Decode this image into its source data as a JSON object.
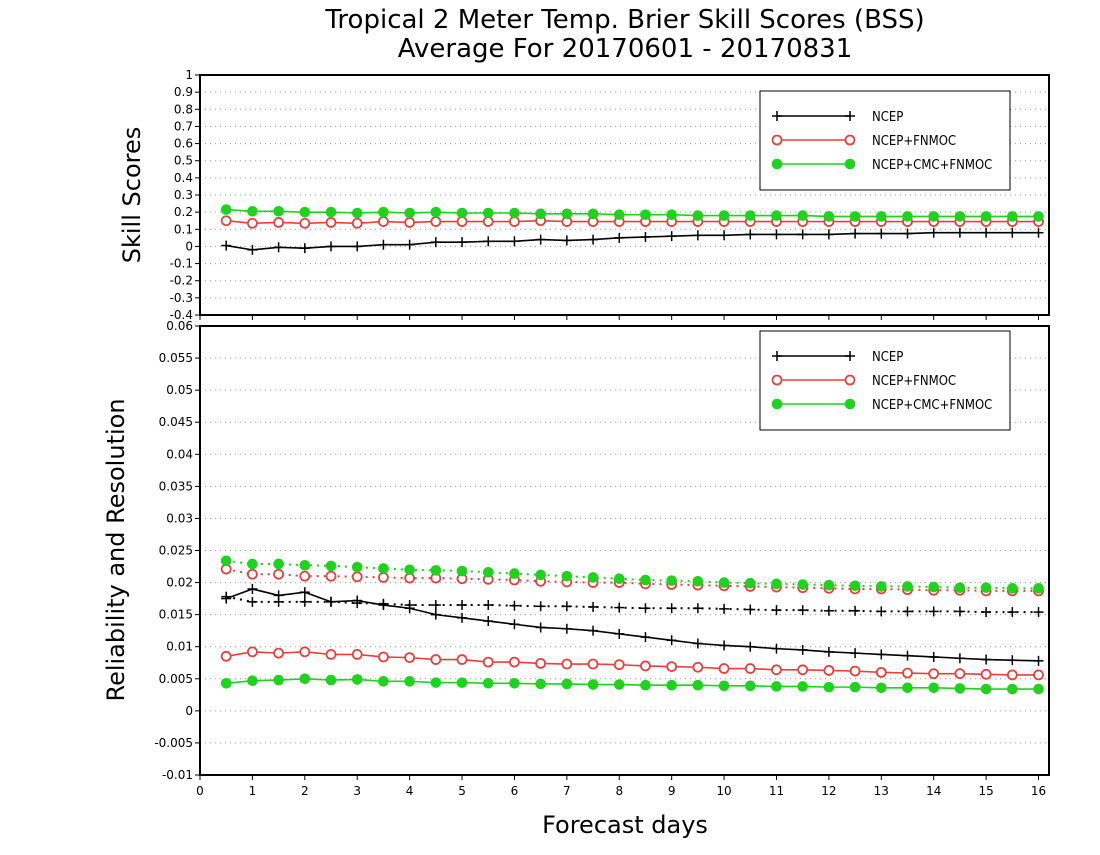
{
  "colors": {
    "ncep": "#000000",
    "fnmoc": "#e8403c",
    "cmc": "#1ed21e"
  },
  "chart_data": [
    {
      "type": "line",
      "title": [
        "Tropical 2 Meter Temp. Brier Skill Scores (BSS)",
        "Average For 20170601 - 20170831"
      ],
      "ylabel": "Skill Scores",
      "xlim": [
        0,
        16.2
      ],
      "ylim": [
        -0.4,
        1
      ],
      "yticks": [
        "-0.4",
        "-0.3",
        "-0.2",
        "-0.1",
        "0",
        "0.1",
        "0.2",
        "0.3",
        "0.4",
        "0.5",
        "0.6",
        "0.7",
        "0.8",
        "0.9",
        "1"
      ],
      "grid": true,
      "legend_position": "top-right",
      "legend": [
        "NCEP",
        "NCEP+FNMOC",
        "NCEP+CMC+FNMOC"
      ],
      "x": [
        0.5,
        1,
        1.5,
        2,
        2.5,
        3,
        3.5,
        4,
        4.5,
        5,
        5.5,
        6,
        6.5,
        7,
        7.5,
        8,
        8.5,
        9,
        9.5,
        10,
        10.5,
        11,
        11.5,
        12,
        12.5,
        13,
        13.5,
        14,
        14.5,
        15,
        15.5,
        16
      ],
      "series": [
        {
          "name": "NCEP",
          "style": "plus-solid",
          "color": "#000000",
          "values": [
            0.005,
            -0.02,
            -0.005,
            -0.01,
            0.0,
            0.0,
            0.01,
            0.01,
            0.025,
            0.025,
            0.03,
            0.03,
            0.04,
            0.035,
            0.04,
            0.05,
            0.055,
            0.06,
            0.065,
            0.065,
            0.07,
            0.07,
            0.07,
            0.07,
            0.075,
            0.075,
            0.075,
            0.08,
            0.08,
            0.08,
            0.08,
            0.08
          ]
        },
        {
          "name": "NCEP+FNMOC",
          "style": "circle-solid",
          "color": "#e8403c",
          "values": [
            0.15,
            0.135,
            0.14,
            0.135,
            0.14,
            0.135,
            0.145,
            0.14,
            0.145,
            0.145,
            0.145,
            0.145,
            0.15,
            0.145,
            0.145,
            0.145,
            0.145,
            0.145,
            0.145,
            0.145,
            0.145,
            0.145,
            0.145,
            0.145,
            0.145,
            0.145,
            0.145,
            0.145,
            0.145,
            0.145,
            0.145,
            0.145
          ]
        },
        {
          "name": "NCEP+CMC+FNMOC",
          "style": "dot-solid",
          "color": "#1ed21e",
          "values": [
            0.215,
            0.205,
            0.205,
            0.2,
            0.2,
            0.195,
            0.2,
            0.195,
            0.2,
            0.195,
            0.195,
            0.195,
            0.19,
            0.19,
            0.19,
            0.185,
            0.185,
            0.185,
            0.18,
            0.18,
            0.18,
            0.18,
            0.18,
            0.175,
            0.175,
            0.175,
            0.175,
            0.175,
            0.175,
            0.175,
            0.175,
            0.175
          ]
        }
      ]
    },
    {
      "type": "line",
      "ylabel": "Reliability and Resolution",
      "xlabel": "Forecast days",
      "xlim": [
        0,
        16.2
      ],
      "ylim": [
        -0.01,
        0.06
      ],
      "xticks": [
        "0",
        "1",
        "2",
        "3",
        "4",
        "5",
        "6",
        "7",
        "8",
        "9",
        "10",
        "11",
        "12",
        "13",
        "14",
        "15",
        "16"
      ],
      "yticks": [
        "-0.01",
        "-0.005",
        "0",
        "0.005",
        "0.01",
        "0.015",
        "0.02",
        "0.025",
        "0.03",
        "0.035",
        "0.04",
        "0.045",
        "0.05",
        "0.055",
        "0.06"
      ],
      "grid": true,
      "legend_position": "top-right",
      "legend": [
        "NCEP",
        "NCEP+FNMOC",
        "NCEP+CMC+FNMOC"
      ],
      "x": [
        0.5,
        1,
        1.5,
        2,
        2.5,
        3,
        3.5,
        4,
        4.5,
        5,
        5.5,
        6,
        6.5,
        7,
        7.5,
        8,
        8.5,
        9,
        9.5,
        10,
        10.5,
        11,
        11.5,
        12,
        12.5,
        13,
        13.5,
        14,
        14.5,
        15,
        15.5,
        16
      ],
      "series": [
        {
          "name": "NCEP",
          "style": "plus-solid",
          "color": "#000000",
          "values": [
            0.0175,
            0.019,
            0.018,
            0.0185,
            0.017,
            0.0172,
            0.0165,
            0.016,
            0.015,
            0.0145,
            0.014,
            0.0135,
            0.013,
            0.0128,
            0.0125,
            0.012,
            0.0115,
            0.011,
            0.0105,
            0.0102,
            0.01,
            0.0097,
            0.0095,
            0.0092,
            0.009,
            0.0088,
            0.0086,
            0.0084,
            0.0082,
            0.008,
            0.0079,
            0.0078
          ]
        },
        {
          "name": "NCEP",
          "style": "plus-dotted",
          "color": "#000000",
          "values": [
            0.0178,
            0.017,
            0.017,
            0.017,
            0.017,
            0.0168,
            0.0167,
            0.0165,
            0.0165,
            0.0165,
            0.0165,
            0.0164,
            0.0163,
            0.0163,
            0.0162,
            0.0161,
            0.016,
            0.016,
            0.016,
            0.0159,
            0.0158,
            0.0157,
            0.0157,
            0.0156,
            0.0156,
            0.0155,
            0.0155,
            0.0155,
            0.0155,
            0.0154,
            0.0154,
            0.0154
          ]
        },
        {
          "name": "NCEP+FNMOC",
          "style": "circle-solid",
          "color": "#e8403c",
          "values": [
            0.0085,
            0.0092,
            0.009,
            0.0092,
            0.0088,
            0.0088,
            0.0084,
            0.0083,
            0.008,
            0.008,
            0.0076,
            0.0076,
            0.0074,
            0.0073,
            0.0073,
            0.0072,
            0.007,
            0.0069,
            0.0068,
            0.0066,
            0.0066,
            0.0064,
            0.0064,
            0.0063,
            0.0062,
            0.006,
            0.0059,
            0.0058,
            0.0058,
            0.0057,
            0.0056,
            0.0056
          ]
        },
        {
          "name": "NCEP+FNMOC",
          "style": "circle-dotted",
          "color": "#e8403c",
          "values": [
            0.0221,
            0.0213,
            0.0213,
            0.021,
            0.021,
            0.0209,
            0.0208,
            0.0207,
            0.0207,
            0.0206,
            0.0205,
            0.0204,
            0.0202,
            0.0201,
            0.02,
            0.02,
            0.0198,
            0.0197,
            0.0196,
            0.0195,
            0.0194,
            0.0193,
            0.0192,
            0.0191,
            0.019,
            0.019,
            0.0189,
            0.0188,
            0.0188,
            0.0187,
            0.0187,
            0.0187
          ]
        },
        {
          "name": "NCEP+CMC+FNMOC",
          "style": "dot-solid",
          "color": "#1ed21e",
          "values": [
            0.0043,
            0.0047,
            0.0048,
            0.005,
            0.0048,
            0.0049,
            0.0046,
            0.0046,
            0.0044,
            0.0044,
            0.0043,
            0.0043,
            0.0042,
            0.0042,
            0.0041,
            0.0041,
            0.004,
            0.004,
            0.004,
            0.0039,
            0.0039,
            0.0038,
            0.0038,
            0.0037,
            0.0037,
            0.0036,
            0.0036,
            0.0036,
            0.0035,
            0.0034,
            0.0034,
            0.0034
          ]
        },
        {
          "name": "NCEP+CMC+FNMOC",
          "style": "dot-dotted",
          "color": "#1ed21e",
          "values": [
            0.0234,
            0.0229,
            0.0229,
            0.0227,
            0.0226,
            0.0224,
            0.0222,
            0.022,
            0.0219,
            0.0218,
            0.0216,
            0.0214,
            0.0212,
            0.021,
            0.0208,
            0.0206,
            0.0204,
            0.0203,
            0.0202,
            0.02,
            0.0199,
            0.0198,
            0.0197,
            0.0196,
            0.0195,
            0.0194,
            0.0194,
            0.0193,
            0.0192,
            0.0192,
            0.0191,
            0.0191
          ]
        }
      ]
    }
  ]
}
